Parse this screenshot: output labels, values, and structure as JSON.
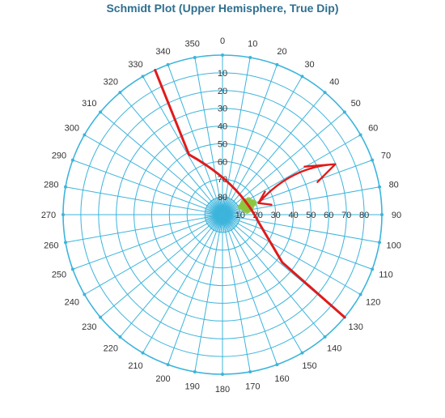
{
  "chart_data": {
    "type": "scatter",
    "title": "Schmidt Plot (Upper Hemisphere, True Dip)",
    "projection": "equal-area",
    "azimuth_ticks": [
      0,
      10,
      20,
      30,
      40,
      50,
      60,
      70,
      80,
      90,
      100,
      110,
      120,
      130,
      140,
      150,
      160,
      170,
      180,
      190,
      200,
      210,
      220,
      230,
      240,
      250,
      260,
      270,
      280,
      290,
      300,
      310,
      320,
      330,
      340,
      350
    ],
    "azimuth_labels": [
      "0",
      "10",
      "20",
      "30",
      "40",
      "50",
      "60",
      "70",
      "80",
      "90",
      "100",
      "110",
      "120",
      "130",
      "140",
      "150",
      "160",
      "170",
      "180",
      "190",
      "200",
      "210",
      "220",
      "230",
      "240",
      "250",
      "260",
      "270",
      "280",
      "290",
      "300",
      "310",
      "320",
      "330",
      "340",
      "350"
    ],
    "dip_ticks_vertical": [
      "10",
      "20",
      "30",
      "40",
      "50",
      "60",
      "70",
      "80"
    ],
    "dip_ticks_horizontal": [
      "10",
      "20",
      "30",
      "40",
      "50",
      "60",
      "70",
      "80"
    ],
    "dip_range": [
      0,
      90
    ],
    "grid": true,
    "colors": {
      "title": "#2f6f8f",
      "grid": "#3cb4dc",
      "points": "#8dc63f",
      "annotation": "#e01b1b"
    },
    "series": [
      {
        "points": [
          {
            "azimuth": 68,
            "dip": 75
          },
          {
            "azimuth": 72,
            "dip": 76
          },
          {
            "azimuth": 62,
            "dip": 74
          },
          {
            "azimuth": 75,
            "dip": 73
          },
          {
            "azimuth": 66,
            "dip": 72
          },
          {
            "azimuth": 70,
            "dip": 78
          },
          {
            "azimuth": 58,
            "dip": 76
          },
          {
            "azimuth": 80,
            "dip": 75
          },
          {
            "azimuth": 64,
            "dip": 77
          },
          {
            "azimuth": 74,
            "dip": 74
          },
          {
            "azimuth": 60,
            "dip": 73
          },
          {
            "azimuth": 78,
            "dip": 77
          },
          {
            "azimuth": 67,
            "dip": 79
          },
          {
            "azimuth": 71,
            "dip": 71
          },
          {
            "azimuth": 63,
            "dip": 75
          },
          {
            "azimuth": 76,
            "dip": 76
          },
          {
            "azimuth": 69,
            "dip": 73
          },
          {
            "azimuth": 65,
            "dip": 78
          },
          {
            "azimuth": 73,
            "dip": 75
          },
          {
            "azimuth": 61,
            "dip": 77
          },
          {
            "azimuth": 77,
            "dip": 74
          },
          {
            "azimuth": 70,
            "dip": 72
          },
          {
            "azimuth": 66,
            "dip": 76
          },
          {
            "azimuth": 72,
            "dip": 78
          },
          {
            "azimuth": 59,
            "dip": 75
          },
          {
            "azimuth": 82,
            "dip": 76
          },
          {
            "azimuth": 68,
            "dip": 71
          },
          {
            "azimuth": 74,
            "dip": 77
          },
          {
            "azimuth": 64,
            "dip": 73
          },
          {
            "azimuth": 79,
            "dip": 74
          }
        ]
      }
    ],
    "annotations": [
      {
        "type": "strike-line",
        "azimuths": [
          335,
          130
        ],
        "note": "hand-drawn line through cluster"
      },
      {
        "type": "arrow",
        "points_to": {
          "azimuth": 68,
          "dip": 75
        }
      }
    ]
  }
}
